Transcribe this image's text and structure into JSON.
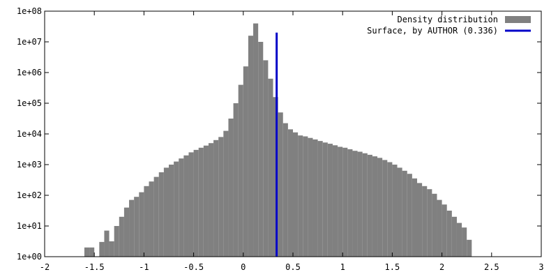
{
  "chart_data": {
    "type": "bar",
    "title": "",
    "xlabel": "",
    "ylabel": "",
    "xlim": [
      -2,
      3
    ],
    "ylim_log10": [
      0,
      8
    ],
    "y_scale": "log",
    "grid": false,
    "legend_placement": "top-right",
    "x_ticks": [
      -2,
      -1.5,
      -1,
      -0.5,
      0,
      0.5,
      1,
      1.5,
      2,
      2.5,
      3
    ],
    "x_tick_labels": [
      "-2",
      "-1.5",
      "-1",
      "-0.5",
      "0",
      "0.5",
      "1",
      "1.5",
      "2",
      "2.5",
      "3"
    ],
    "y_ticks_log10": [
      0,
      1,
      2,
      3,
      4,
      5,
      6,
      7,
      8
    ],
    "y_tick_labels": [
      "1e+00",
      "1e+01",
      "1e+02",
      "1e+03",
      "1e+04",
      "1e+05",
      "1e+06",
      "1e+07",
      "1e+08"
    ],
    "histogram": {
      "name": "Density distribution",
      "color": "#808080",
      "bin_width": 0.05,
      "x": [
        -1.6,
        -1.55,
        -1.5,
        -1.45,
        -1.4,
        -1.35,
        -1.3,
        -1.25,
        -1.2,
        -1.15,
        -1.1,
        -1.05,
        -1.0,
        -0.95,
        -0.9,
        -0.85,
        -0.8,
        -0.75,
        -0.7,
        -0.65,
        -0.6,
        -0.55,
        -0.5,
        -0.45,
        -0.4,
        -0.35,
        -0.3,
        -0.25,
        -0.2,
        -0.15,
        -0.1,
        -0.05,
        0.0,
        0.05,
        0.1,
        0.15,
        0.2,
        0.25,
        0.3,
        0.35,
        0.4,
        0.45,
        0.5,
        0.55,
        0.6,
        0.65,
        0.7,
        0.75,
        0.8,
        0.85,
        0.9,
        0.95,
        1.0,
        1.05,
        1.1,
        1.15,
        1.2,
        1.25,
        1.3,
        1.35,
        1.4,
        1.45,
        1.5,
        1.55,
        1.6,
        1.65,
        1.7,
        1.75,
        1.8,
        1.85,
        1.9,
        1.95,
        2.0,
        2.05,
        2.1,
        2.15,
        2.2,
        2.25
      ],
      "log10_values": [
        0.3,
        0.3,
        0.0,
        0.48,
        0.85,
        0.5,
        1.0,
        1.3,
        1.6,
        1.85,
        1.95,
        2.1,
        2.3,
        2.45,
        2.6,
        2.75,
        2.9,
        3.0,
        3.1,
        3.2,
        3.3,
        3.4,
        3.48,
        3.55,
        3.62,
        3.7,
        3.8,
        3.9,
        4.1,
        4.5,
        5.0,
        5.6,
        6.2,
        7.2,
        7.6,
        7.0,
        6.4,
        5.8,
        5.2,
        4.7,
        4.35,
        4.15,
        4.05,
        3.95,
        3.92,
        3.87,
        3.82,
        3.77,
        3.72,
        3.68,
        3.63,
        3.58,
        3.55,
        3.5,
        3.45,
        3.42,
        3.37,
        3.32,
        3.27,
        3.22,
        3.15,
        3.08,
        3.0,
        2.9,
        2.8,
        2.7,
        2.55,
        2.4,
        2.3,
        2.2,
        2.05,
        1.85,
        1.7,
        1.5,
        1.3,
        1.1,
        0.95,
        0.55
      ]
    },
    "vline": {
      "name": "Surface, by AUTHOR (0.336)",
      "color": "#0000c8",
      "x": 0.336,
      "y_top_log10": 7.3
    },
    "legend": [
      {
        "label": "Density distribution",
        "kind": "box",
        "color": "#808080"
      },
      {
        "label": "Surface, by AUTHOR (0.336)",
        "kind": "line",
        "color": "#0000c8"
      }
    ]
  }
}
